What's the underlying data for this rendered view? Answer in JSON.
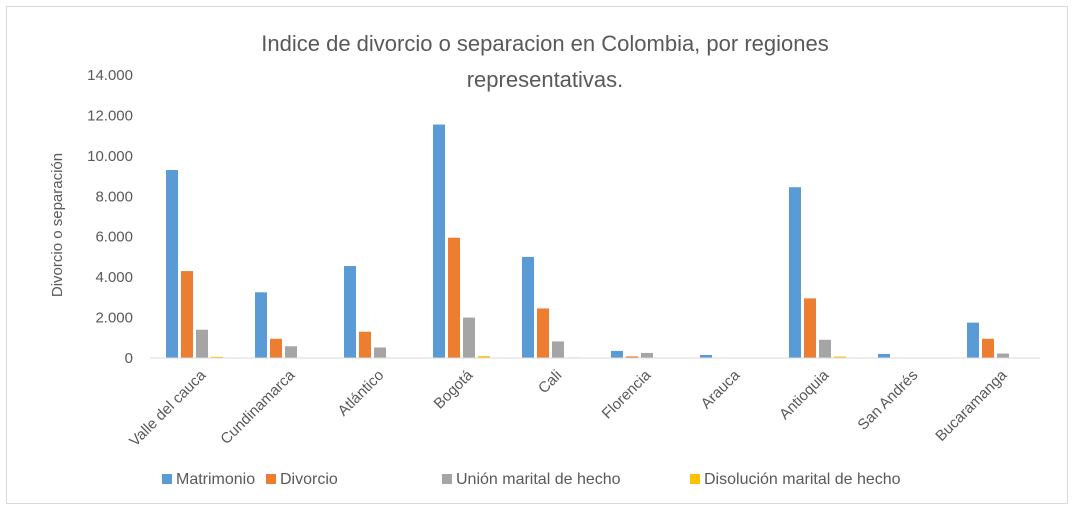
{
  "chart_data": {
    "type": "bar",
    "title_lines": [
      "Indice de divorcio o separacion en Colombia, por regiones",
      "representativas."
    ],
    "xlabel": "",
    "ylabel": "Divorcio o separación",
    "ylim": [
      0,
      14000
    ],
    "y_ticks": [
      "0",
      "2.000",
      "4.000",
      "6.000",
      "8.000",
      "10.000",
      "12.000",
      "14.000"
    ],
    "grid": false,
    "legend_position": "bottom",
    "categories": [
      "Valle del cauca",
      "Cundinamarca",
      "Atlántico",
      "Bogotá",
      "Cali",
      "Florencia",
      "Arauca",
      "Antioquia",
      "San Andrés",
      "Bucaramanga"
    ],
    "series": [
      {
        "name": "Matrimonio",
        "color": "#5b9bd5",
        "values": [
          9300,
          3250,
          4550,
          11550,
          5000,
          350,
          150,
          8450,
          200,
          1750
        ]
      },
      {
        "name": "Divorcio",
        "color": "#ed7d31",
        "values": [
          4300,
          950,
          1300,
          5950,
          2450,
          80,
          20,
          2950,
          20,
          950
        ]
      },
      {
        "name": "Unión marital de hecho",
        "color": "#a5a5a5",
        "values": [
          1400,
          580,
          520,
          2000,
          820,
          250,
          20,
          900,
          20,
          220
        ]
      },
      {
        "name": "Disolución marital de hecho",
        "color": "#ffc000",
        "values": [
          60,
          20,
          20,
          90,
          30,
          10,
          5,
          70,
          5,
          20
        ]
      }
    ]
  }
}
